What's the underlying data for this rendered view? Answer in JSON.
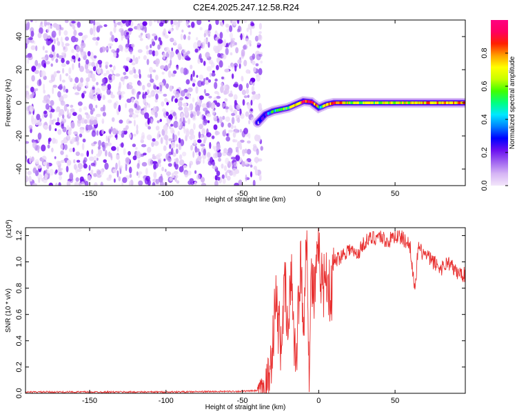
{
  "title": "C2E4.2025.247.12.58.R24",
  "chart_data": [
    {
      "type": "heatmap",
      "xlabel": "Height of straight line (km)",
      "ylabel": "Frequency (Hz)",
      "xlim": [
        -192,
        96
      ],
      "ylim": [
        -50,
        50
      ],
      "xticks": [
        -150,
        -100,
        -50,
        0,
        50
      ],
      "yticks": [
        -40,
        -20,
        0,
        20,
        40
      ],
      "noise_region_x": [
        -192,
        -40
      ],
      "ridge": {
        "x": [
          -40,
          -35,
          -30,
          -25,
          -20,
          -15,
          -10,
          -5,
          0,
          5,
          10,
          20,
          40,
          60,
          80,
          96
        ],
        "y": [
          -12,
          -7,
          -5,
          -4,
          -3,
          -1,
          1,
          0.5,
          -3,
          -1,
          0,
          0,
          0,
          0,
          0,
          0
        ],
        "amplitude": [
          0.15,
          0.3,
          0.45,
          0.55,
          0.6,
          0.7,
          0.9,
          0.95,
          0.5,
          0.7,
          0.9,
          0.6,
          0.65,
          0.7,
          0.75,
          0.8
        ]
      },
      "colorbar": {
        "label": "Normalized spectral amplitude",
        "range": [
          0,
          1
        ],
        "ticks": [
          "0.0",
          "0.2",
          "0.4",
          "0.6",
          "0.8"
        ],
        "tick_values": [
          0,
          0.2,
          0.4,
          0.6,
          0.8
        ],
        "colors": [
          "#f3e6fa",
          "#d6b5f5",
          "#a064f0",
          "#6a0ff0",
          "#0000ff",
          "#0080ff",
          "#00e8ff",
          "#00ff80",
          "#40ff00",
          "#c8ff00",
          "#ffff00",
          "#ffa000",
          "#ff2000",
          "#ff0060",
          "#ff0080"
        ]
      }
    },
    {
      "type": "line",
      "xlabel": "Height of straight line (km)",
      "ylabel": "SNR (10 * v/v)",
      "yscale_note": "(x10",
      "yscale_exp": "4",
      "xlim": [
        -192,
        96
      ],
      "ylim": [
        0,
        1.26
      ],
      "xticks": [
        -150,
        -100,
        -50,
        0,
        50
      ],
      "yticks": [
        "0.0",
        "0.2",
        "0.4",
        "0.6",
        "0.8",
        "1.0",
        "1.2"
      ],
      "ytick_values": [
        0,
        0.2,
        0.4,
        0.6,
        0.8,
        1.0,
        1.2
      ],
      "line_color": "#e83030",
      "series": [
        {
          "x": [
            -192,
            -100,
            -50,
            -40,
            -35,
            -32,
            -30,
            -28,
            -25,
            -22,
            -20,
            -18,
            -15,
            -12,
            -10,
            -8,
            -6,
            -5,
            -3,
            0,
            3,
            5,
            8,
            10,
            15,
            20,
            25,
            30,
            35,
            40,
            45,
            50,
            55,
            60,
            63,
            65,
            70,
            75,
            80,
            85,
            90,
            96
          ],
          "y": [
            0.01,
            0.01,
            0.015,
            0.02,
            0.04,
            0.15,
            0.45,
            0.7,
            0.38,
            0.8,
            0.4,
            0.95,
            0.2,
            1.0,
            0.5,
            1.25,
            0.1,
            0.9,
            0.75,
            1.05,
            0.8,
            0.95,
            0.7,
            1.0,
            1.05,
            1.1,
            1.05,
            1.15,
            1.18,
            1.2,
            1.15,
            1.2,
            1.18,
            1.12,
            0.75,
            1.1,
            1.05,
            1.0,
            0.95,
            1.0,
            0.92,
            0.9
          ]
        }
      ]
    }
  ]
}
